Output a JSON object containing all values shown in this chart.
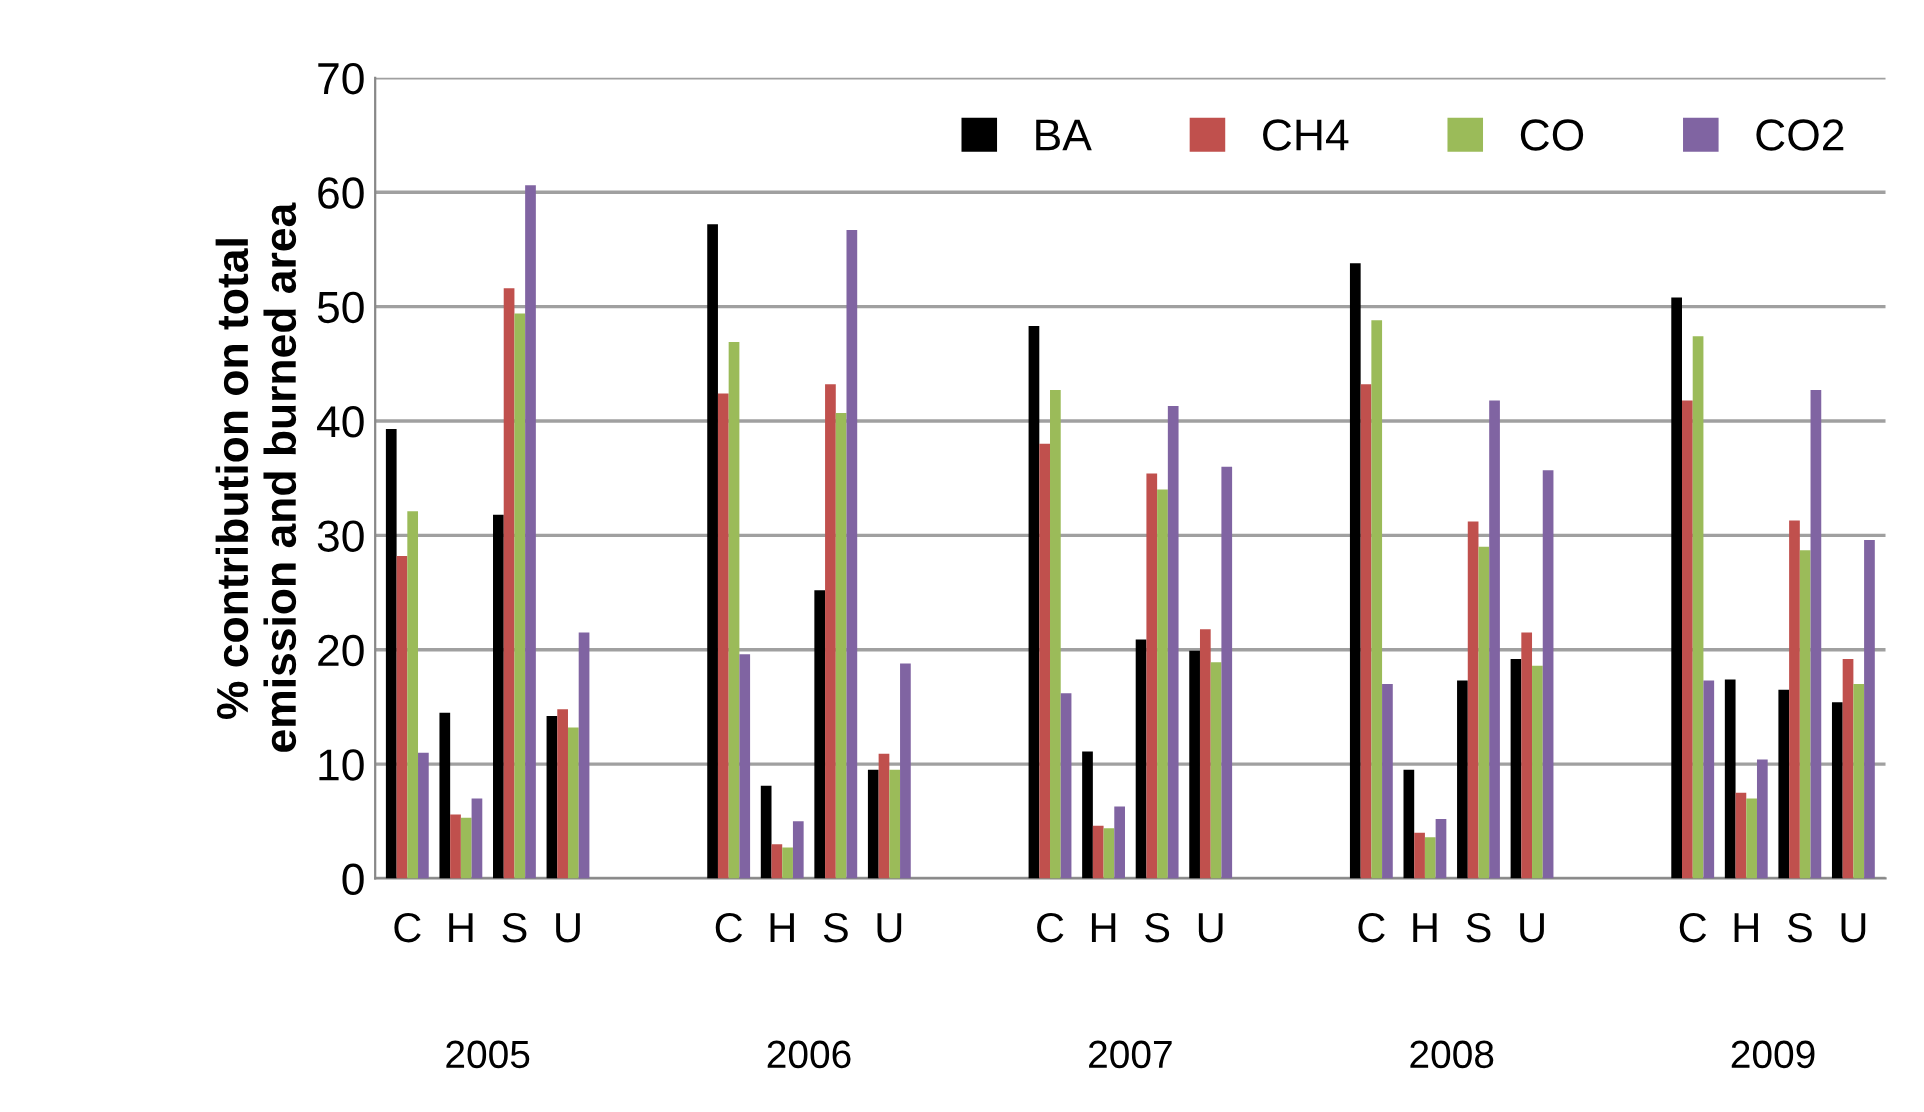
{
  "chart_data": {
    "type": "bar",
    "ylabel": "% contribution on total\nemission and burned area",
    "categories": [
      "C",
      "H",
      "S",
      "U",
      null,
      null,
      "C",
      "H",
      "S",
      "U",
      null,
      null,
      "C",
      "H",
      "S",
      "U",
      null,
      null,
      "C",
      "H",
      "S",
      "U",
      null,
      null,
      "C",
      "H",
      "S",
      "U"
    ],
    "series": [
      {
        "name": "BA",
        "color": "#000000",
        "values": [
          39.3,
          14.5,
          31.8,
          14.2,
          null,
          null,
          57.2,
          8.1,
          25.2,
          9.5,
          null,
          null,
          48.3,
          11.1,
          20.9,
          19.9,
          null,
          null,
          53.8,
          9.5,
          17.3,
          19.2,
          null,
          null,
          50.8,
          17.4,
          16.5,
          15.4
        ]
      },
      {
        "name": "CH4",
        "color": "#c0504d",
        "values": [
          28.2,
          5.6,
          51.6,
          14.8,
          null,
          null,
          42.4,
          3.0,
          43.2,
          10.9,
          null,
          null,
          38.0,
          4.6,
          35.4,
          21.8,
          null,
          null,
          43.2,
          4.0,
          31.2,
          21.5,
          null,
          null,
          41.8,
          7.5,
          31.3,
          19.2
        ]
      },
      {
        "name": "CO",
        "color": "#9bbb59",
        "values": [
          32.1,
          5.3,
          49.4,
          13.2,
          null,
          null,
          46.9,
          2.7,
          40.7,
          9.5,
          null,
          null,
          42.7,
          4.4,
          34.0,
          18.9,
          null,
          null,
          48.8,
          3.6,
          29.0,
          18.6,
          null,
          null,
          47.4,
          7.0,
          28.7,
          17.0
        ]
      },
      {
        "name": "CO2",
        "color": "#8064a2",
        "values": [
          11.0,
          7.0,
          60.6,
          21.5,
          null,
          null,
          19.6,
          5.0,
          56.7,
          18.8,
          null,
          null,
          16.2,
          6.3,
          41.3,
          36.0,
          null,
          null,
          17.0,
          5.2,
          41.8,
          35.7,
          null,
          null,
          17.3,
          10.4,
          42.7,
          29.6
        ]
      }
    ],
    "annotations": [
      "2005",
      "2006",
      "2007",
      "2008",
      "2009"
    ],
    "ylim": [
      0,
      70
    ],
    "yticks": [
      0,
      10,
      20,
      30,
      40,
      50,
      60,
      70
    ],
    "grid": "y",
    "legend": "top right"
  }
}
